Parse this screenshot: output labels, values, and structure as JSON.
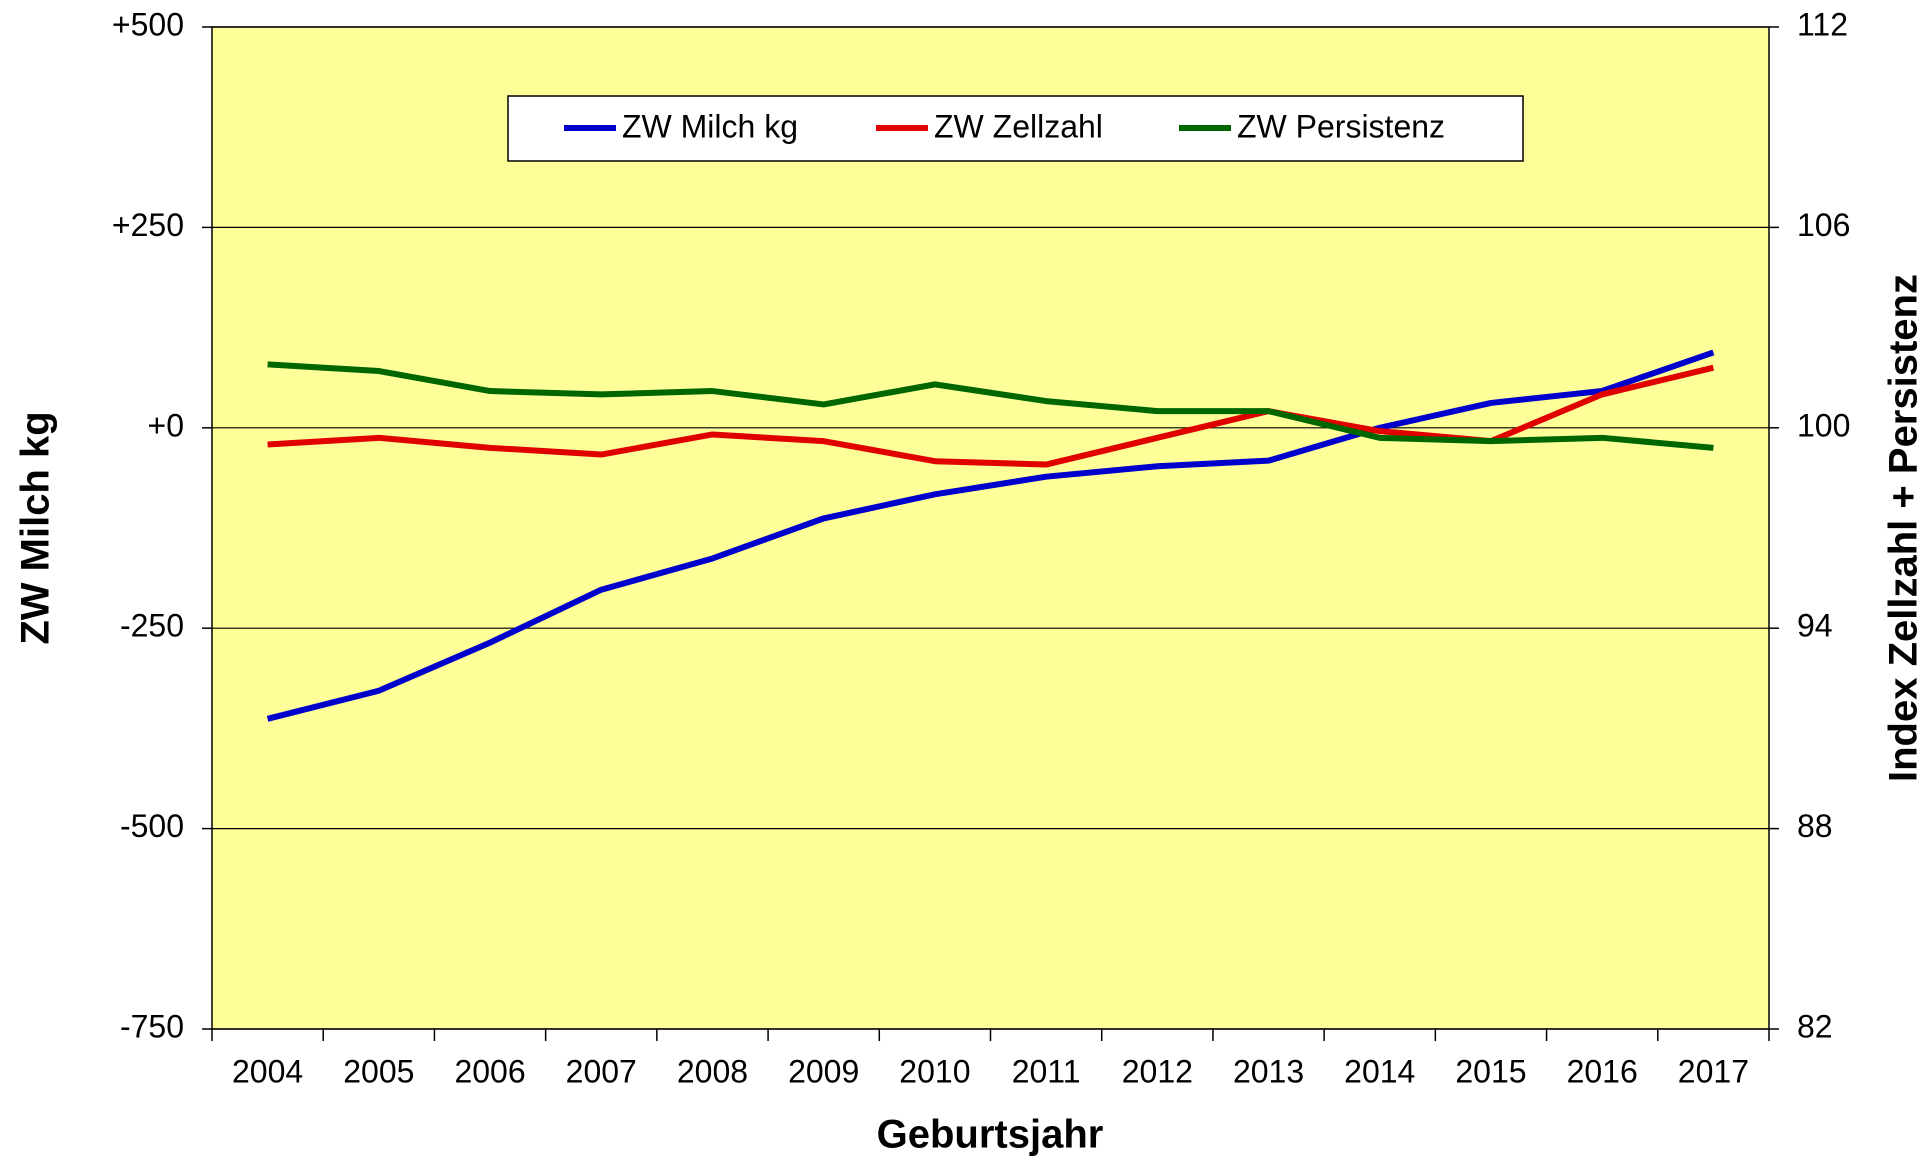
{
  "chart_data": {
    "type": "line",
    "x_label": "Geburtsjahr",
    "y_label": "ZW Milch kg",
    "y2_label": "Index Zellzahl + Persistenz",
    "categories": [
      "2004",
      "2005",
      "2006",
      "2007",
      "2008",
      "2009",
      "2010",
      "2011",
      "2012",
      "2013",
      "2014",
      "2015",
      "2016",
      "2017"
    ],
    "series": [
      {
        "name": "ZW Milch kg",
        "color": "#0000cc",
        "axis": "y",
        "values": [
          -363,
          -328,
          -268,
          -202,
          -163,
          -113,
          -83,
          -61,
          -48,
          -41,
          0,
          31,
          46,
          94
        ]
      },
      {
        "name": "ZW Zellzahl",
        "color": "#e00000",
        "axis": "y2",
        "values": [
          99.5,
          99.7,
          99.4,
          99.2,
          99.8,
          99.6,
          99.0,
          98.9,
          99.7,
          100.5,
          99.9,
          99.6,
          101.0,
          101.8
        ]
      },
      {
        "name": "ZW Persistenz",
        "color": "#006600",
        "axis": "y2",
        "values": [
          101.9,
          101.7,
          101.1,
          101.0,
          101.1,
          100.7,
          101.3,
          100.8,
          100.5,
          100.5,
          99.7,
          99.6,
          99.7,
          99.4
        ]
      }
    ],
    "ylim": [
      -750,
      500
    ],
    "yticks": [
      -750,
      -500,
      -250,
      {
        "value": 0,
        "label": "+0"
      },
      {
        "value": 250,
        "label": "+250"
      },
      {
        "value": 500,
        "label": "+500"
      }
    ],
    "y2lim": [
      82,
      112
    ],
    "y2ticks": [
      82,
      88,
      94,
      100,
      106,
      112
    ],
    "grid": true,
    "plot_background": "#ffff99",
    "legend": "top"
  }
}
